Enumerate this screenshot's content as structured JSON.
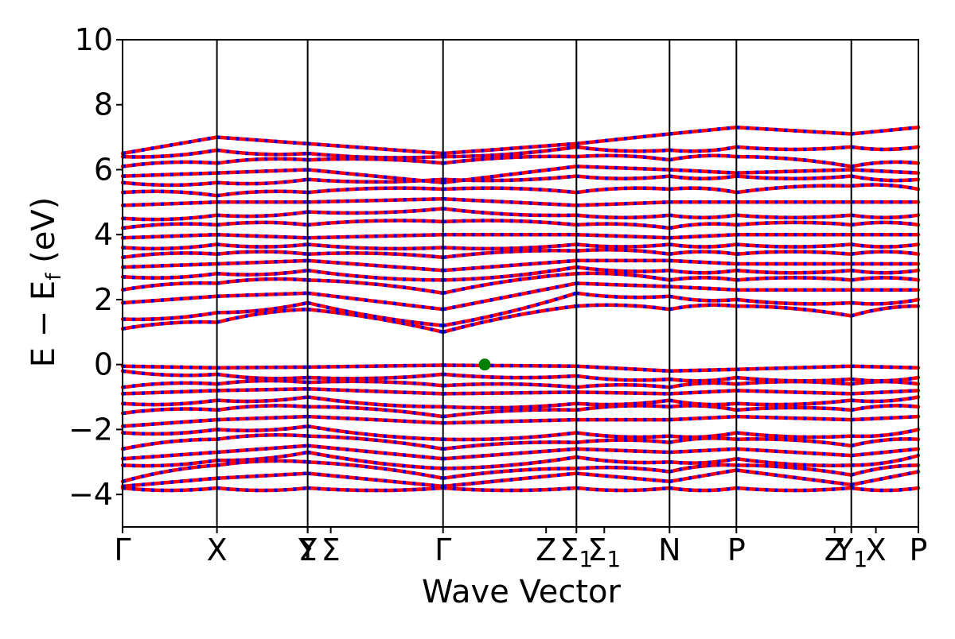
{
  "chart_data": {
    "type": "line",
    "xlabel": "Wave Vector",
    "ylabel": "E − E",
    "ylabel_sub": "f",
    "ylabel_unit": " (eV)",
    "ylim": [
      -5,
      10
    ],
    "yticks": [
      -4,
      -2,
      0,
      2,
      4,
      6,
      8,
      10
    ],
    "ytick_labels": [
      "−4",
      "−2",
      "0",
      "2",
      "4",
      "6",
      "8",
      "10"
    ],
    "path_length": 1.0,
    "kpoints": [
      {
        "label": "Γ",
        "x": 0.0
      },
      {
        "label": "X",
        "x": 0.1186
      },
      {
        "label": "Y",
        "x": 0.2326
      },
      {
        "label": "Σ",
        "x": 0.2326
      },
      {
        "label": "Σ",
        "x": 0.2616
      },
      {
        "label": "Γ",
        "x": 0.4027
      },
      {
        "label": "Z",
        "x": 0.5322
      },
      {
        "label": "Σ1",
        "x": 0.5703
      },
      {
        "label": "Σ1",
        "x": 0.6053
      },
      {
        "label": "N",
        "x": 0.6873
      },
      {
        "label": "P",
        "x": 0.7713
      },
      {
        "label": "Z",
        "x": 0.8947
      },
      {
        "label": "Y1",
        "x": 0.9157
      },
      {
        "label": "X",
        "x": 0.9466
      },
      {
        "label": "P",
        "x": 1.0
      }
    ],
    "vertical_lines": [
      0.0,
      0.1186,
      0.2326,
      0.4027,
      0.5703,
      0.6873,
      0.7713,
      0.9157,
      1.0
    ],
    "segments": [
      [
        0.0,
        0.1186
      ],
      [
        0.1186,
        0.2326
      ],
      [
        0.2326,
        0.4027
      ],
      [
        0.4027,
        0.5703
      ],
      [
        0.5703,
        0.6873
      ],
      [
        0.6873,
        0.7713
      ],
      [
        0.7713,
        0.9157
      ],
      [
        0.9157,
        1.0
      ]
    ],
    "series": [
      {
        "values": [
          [
            -3.8,
            -3.8,
            -3.8,
            -3.8,
            -3.8,
            -3.8,
            -3.8,
            -3.8,
            -3.8
          ],
          [
            -3.75,
            -3.5,
            -3.35,
            -3.75,
            -3.35,
            -3.6,
            -3.25,
            -3.7,
            -3.3
          ],
          [
            -3.6,
            -3.1,
            -3.0,
            -3.5,
            -3.2,
            -3.3,
            -3.1,
            -3.4,
            -3.1
          ],
          [
            -3.1,
            -2.95,
            -2.7,
            -3.2,
            -2.85,
            -3.0,
            -2.9,
            -3.1,
            -2.8
          ],
          [
            -2.9,
            -2.7,
            -2.5,
            -2.9,
            -2.6,
            -2.7,
            -2.6,
            -2.8,
            -2.6
          ],
          [
            -2.6,
            -2.3,
            -2.2,
            -2.6,
            -2.4,
            -2.4,
            -2.3,
            -2.5,
            -2.3
          ],
          [
            -2.1,
            -2.0,
            -1.9,
            -2.3,
            -2.1,
            -2.2,
            -2.1,
            -2.2,
            -2.0
          ],
          [
            -1.9,
            -1.7,
            -1.6,
            -1.8,
            -1.7,
            -1.7,
            -1.6,
            -1.7,
            -1.6
          ],
          [
            -1.5,
            -1.4,
            -1.3,
            -1.6,
            -1.4,
            -1.3,
            -1.4,
            -1.4,
            -1.3
          ],
          [
            -1.2,
            -1.1,
            -1.0,
            -1.3,
            -1.2,
            -1.1,
            -1.2,
            -1.1,
            -1.0
          ],
          [
            -0.9,
            -0.8,
            -0.75,
            -0.9,
            -0.85,
            -0.9,
            -0.8,
            -0.9,
            -0.8
          ],
          [
            -0.7,
            -0.6,
            -0.55,
            -0.65,
            -0.7,
            -0.7,
            -0.6,
            -0.6,
            -0.6
          ],
          [
            -0.2,
            -0.3,
            -0.4,
            -0.3,
            -0.35,
            -0.45,
            -0.4,
            -0.45,
            -0.4
          ],
          [
            -0.05,
            -0.1,
            -0.08,
            -0.02,
            -0.05,
            -0.2,
            -0.15,
            -0.05,
            -0.1
          ],
          [
            1.1,
            1.3,
            1.7,
            1.0,
            1.8,
            1.7,
            1.8,
            1.5,
            1.8
          ],
          [
            1.4,
            1.6,
            1.9,
            1.2,
            2.2,
            2.1,
            2.0,
            1.9,
            2.0
          ],
          [
            1.9,
            2.1,
            2.2,
            1.7,
            2.5,
            2.4,
            2.3,
            2.3,
            2.3
          ],
          [
            2.3,
            2.5,
            2.6,
            2.2,
            2.8,
            2.6,
            2.6,
            2.6,
            2.6
          ],
          [
            2.7,
            2.8,
            2.9,
            2.6,
            3.0,
            2.9,
            2.9,
            2.9,
            2.9
          ],
          [
            3.0,
            3.1,
            3.2,
            2.9,
            3.2,
            3.2,
            3.1,
            3.1,
            3.1
          ],
          [
            3.3,
            3.4,
            3.4,
            3.3,
            3.5,
            3.4,
            3.4,
            3.4,
            3.4
          ],
          [
            3.6,
            3.7,
            3.7,
            3.6,
            3.7,
            3.7,
            3.7,
            3.7,
            3.7
          ],
          [
            3.9,
            4.0,
            3.9,
            4.0,
            4.0,
            3.9,
            4.0,
            4.0,
            4.0
          ],
          [
            4.2,
            4.3,
            4.3,
            4.4,
            4.3,
            4.2,
            4.3,
            4.3,
            4.3
          ],
          [
            4.5,
            4.6,
            4.7,
            4.8,
            4.6,
            4.6,
            4.6,
            4.6,
            4.6
          ],
          [
            4.9,
            5.0,
            5.0,
            5.1,
            4.9,
            5.0,
            5.0,
            5.0,
            5.0
          ],
          [
            5.3,
            5.2,
            5.3,
            5.4,
            5.3,
            5.4,
            5.3,
            5.5,
            5.4
          ],
          [
            5.6,
            5.6,
            5.7,
            5.7,
            5.8,
            5.8,
            5.8,
            5.8,
            5.7
          ],
          [
            5.8,
            5.9,
            6.0,
            5.6,
            6.1,
            6.0,
            5.9,
            6.0,
            5.9
          ],
          [
            6.1,
            6.2,
            6.3,
            6.2,
            6.4,
            6.3,
            6.4,
            6.1,
            6.2
          ],
          [
            6.4,
            6.6,
            6.5,
            6.4,
            6.7,
            6.6,
            6.7,
            6.7,
            6.7
          ],
          [
            6.5,
            7.0,
            6.8,
            6.5,
            6.8,
            7.1,
            7.3,
            7.1,
            7.3
          ]
        ]
      }
    ],
    "band_colors": {
      "primary": "#ff0000",
      "secondary": "#0000ff"
    },
    "marker": {
      "x": 0.455,
      "y": 0.0,
      "color": "#008000"
    },
    "grid": false,
    "legend": "none"
  }
}
